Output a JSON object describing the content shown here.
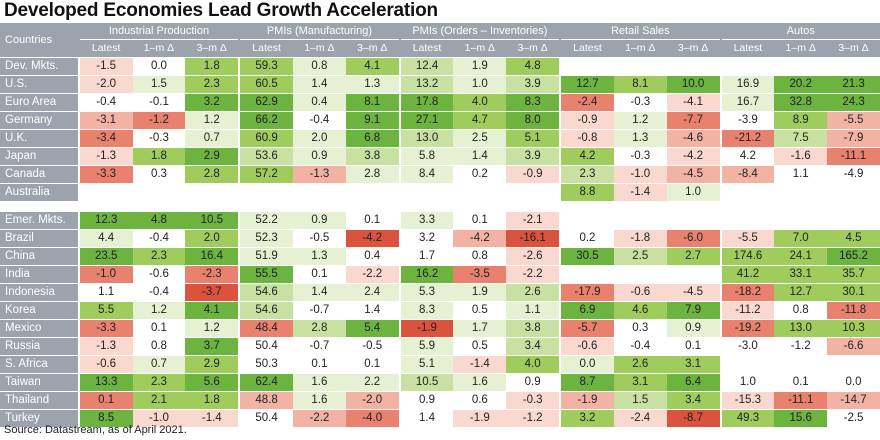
{
  "title": "Developed Economies Lead Growth Acceleration",
  "source": "Source: Datastream, as of April 2021.",
  "chart_data": {
    "type": "table",
    "countries_header": "Countries",
    "groups": [
      {
        "name": "Industrial Production",
        "columns": [
          "Latest",
          "1–m Δ",
          "3–m Δ"
        ]
      },
      {
        "name": "PMIs (Manufacturing)",
        "columns": [
          "Latest",
          "1–m Δ",
          "3–m Δ"
        ]
      },
      {
        "name": "PMIs (Orders – Inventories)",
        "columns": [
          "Latest",
          "1–m Δ",
          "3–m Δ"
        ]
      },
      {
        "name": "Retail Sales",
        "columns": [
          "Latest",
          "1–m Δ",
          "3–m Δ"
        ]
      },
      {
        "name": "Autos",
        "columns": [
          "Latest",
          "1–m Δ",
          "3–m Δ"
        ]
      }
    ],
    "sections": [
      {
        "rows": [
          {
            "country": "Dev. Mkts.",
            "values": [
              "-1.5",
              "0.0",
              "1.8",
              "59.3",
              "0.8",
              "4.1",
              "12.4",
              "1.9",
              "4.8",
              "",
              "",
              "",
              "",
              "",
              ""
            ],
            "shades": [
              "r1",
              "g0",
              "g3",
              "g3",
              "g1",
              "g3",
              "g2",
              "g1",
              "g3",
              "n",
              "n",
              "n",
              "n",
              "n",
              "n"
            ]
          },
          {
            "country": "U.S.",
            "values": [
              "-2.0",
              "1.5",
              "2.3",
              "60.5",
              "1.4",
              "1.3",
              "13.2",
              "1.0",
              "3.9",
              "12.7",
              "8.1",
              "10.0",
              "16.9",
              "20.2",
              "21.3"
            ],
            "shades": [
              "r1",
              "g1",
              "g3",
              "g3",
              "g1",
              "g1",
              "g2",
              "g1",
              "g2",
              "g4",
              "g3",
              "g4",
              "g1",
              "g4",
              "g4"
            ]
          },
          {
            "country": "Euro Area",
            "values": [
              "-0.4",
              "-0.1",
              "3.2",
              "62.9",
              "0.4",
              "8.1",
              "17.8",
              "4.0",
              "8.3",
              "-2.4",
              "-0.3",
              "-4.1",
              "16.7",
              "32.8",
              "24.3"
            ],
            "shades": [
              "g0",
              "g0",
              "g4",
              "g4",
              "g1",
              "g4",
              "g4",
              "g3",
              "g4",
              "r3",
              "g0",
              "r1",
              "g1",
              "g4",
              "g4"
            ]
          },
          {
            "country": "Germany",
            "values": [
              "-3.1",
              "-1.2",
              "1.2",
              "66.2",
              "-0.4",
              "9.1",
              "27.1",
              "4.7",
              "8.0",
              "-0.9",
              "1.2",
              "-7.7",
              "-3.9",
              "8.9",
              "-5.5"
            ],
            "shades": [
              "r2",
              "r3",
              "g1",
              "g4",
              "g0",
              "g4",
              "g4",
              "g3",
              "g4",
              "r1",
              "g1",
              "r3",
              "g0",
              "g3",
              "r2"
            ]
          },
          {
            "country": "U.K.",
            "values": [
              "-3.4",
              "-0.3",
              "0.7",
              "60.9",
              "2.0",
              "6.8",
              "13.0",
              "2.5",
              "5.1",
              "-0.8",
              "1.3",
              "-4.6",
              "-21.2",
              "7.5",
              "-7.9"
            ],
            "shades": [
              "r3",
              "g0",
              "g1",
              "g3",
              "g1",
              "g4",
              "g2",
              "g1",
              "g3",
              "r1",
              "g1",
              "r2",
              "r3",
              "g2",
              "r2"
            ]
          },
          {
            "country": "Japan",
            "values": [
              "-1.3",
              "1.8",
              "2.9",
              "53.6",
              "0.9",
              "3.8",
              "5.8",
              "1.4",
              "3.9",
              "4.2",
              "-0.3",
              "-4.2",
              "4.2",
              "-1.6",
              "-11.1"
            ],
            "shades": [
              "r1",
              "g3",
              "g4",
              "g2",
              "g1",
              "g2",
              "g1",
              "g1",
              "g2",
              "g3",
              "g0",
              "r1",
              "g0",
              "r1",
              "r3"
            ]
          },
          {
            "country": "Canada",
            "values": [
              "-3.3",
              "0.3",
              "2.8",
              "57.2",
              "-1.3",
              "2.8",
              "8.4",
              "0.2",
              "-0.9",
              "2.3",
              "-1.0",
              "-4.5",
              "-8.4",
              "1.1",
              "-4.9"
            ],
            "shades": [
              "r3",
              "g0",
              "g3",
              "g3",
              "r2",
              "g1",
              "g1",
              "g0",
              "r1",
              "g2",
              "r1",
              "r2",
              "r2",
              "g0",
              "g0"
            ]
          },
          {
            "country": "Australia",
            "values": [
              "",
              "",
              "",
              "",
              "",
              "",
              "",
              "",
              "",
              "8.8",
              "-1.4",
              "1.0",
              "",
              "",
              ""
            ],
            "shades": [
              "n",
              "n",
              "n",
              "n",
              "n",
              "n",
              "n",
              "n",
              "n",
              "g3",
              "r1",
              "g1",
              "n",
              "n",
              "n"
            ]
          }
        ]
      },
      {
        "rows": [
          {
            "country": "Emer. Mkts.",
            "values": [
              "12.3",
              "4.8",
              "10.5",
              "52.2",
              "0.9",
              "0.1",
              "3.3",
              "0.1",
              "-2.1",
              "",
              "",
              "",
              "",
              "",
              ""
            ],
            "shades": [
              "g4",
              "g4",
              "g4",
              "g1",
              "g1",
              "g0",
              "g1",
              "g0",
              "r1",
              "n",
              "n",
              "n",
              "n",
              "n",
              "n"
            ]
          },
          {
            "country": "Brazil",
            "values": [
              "4.4",
              "-0.4",
              "2.0",
              "52.3",
              "-0.5",
              "-4.2",
              "3.2",
              "-4.2",
              "-16.1",
              "0.2",
              "-1.8",
              "-6.0",
              "-5.5",
              "7.0",
              "4.5"
            ],
            "shades": [
              "g1",
              "g0",
              "g3",
              "g1",
              "g0",
              "r4",
              "g0",
              "r2",
              "r4",
              "g0",
              "r1",
              "r3",
              "r1",
              "g3",
              "g3"
            ]
          },
          {
            "country": "China",
            "values": [
              "23.5",
              "2.3",
              "16.4",
              "51.9",
              "1.3",
              "0.4",
              "1.7",
              "0.8",
              "-2.6",
              "30.5",
              "2.5",
              "2.7",
              "174.6",
              "24.1",
              "165.2"
            ],
            "shades": [
              "g4",
              "g3",
              "g4",
              "g1",
              "g1",
              "g0",
              "g0",
              "g0",
              "r1",
              "g4",
              "g2",
              "g3",
              "g3",
              "g3",
              "g4"
            ]
          },
          {
            "country": "India",
            "values": [
              "-1.0",
              "-0.6",
              "-2.3",
              "55.5",
              "0.1",
              "-2.2",
              "16.2",
              "-3.5",
              "-2.2",
              "",
              "",
              "",
              "41.2",
              "33.1",
              "35.7"
            ],
            "shades": [
              "r3",
              "g0",
              "r3",
              "g4",
              "g0",
              "r1",
              "g4",
              "r3",
              "r1",
              "n",
              "n",
              "n",
              "g3",
              "g3",
              "g3"
            ]
          },
          {
            "country": "Indonesia",
            "values": [
              "1.1",
              "-0.4",
              "-3.7",
              "54.6",
              "1.4",
              "2.4",
              "5.3",
              "1.9",
              "2.6",
              "-17.9",
              "-0.6",
              "-4.5",
              "-18.2",
              "12.7",
              "30.1"
            ],
            "shades": [
              "g0",
              "g0",
              "r4",
              "g2",
              "g1",
              "g1",
              "g1",
              "g1",
              "g2",
              "r3",
              "r1",
              "r1",
              "r3",
              "g3",
              "g3"
            ]
          },
          {
            "country": "Korea",
            "values": [
              "5.5",
              "1.2",
              "4.1",
              "54.6",
              "-0.7",
              "1.4",
              "8.3",
              "0.5",
              "1.1",
              "6.9",
              "4.6",
              "7.9",
              "-11.2",
              "0.8",
              "-11.8"
            ],
            "shades": [
              "g3",
              "g1",
              "g4",
              "g2",
              "g0",
              "g0",
              "g1",
              "g0",
              "g1",
              "g4",
              "g3",
              "g4",
              "r1",
              "g0",
              "r3"
            ]
          },
          {
            "country": "Mexico",
            "values": [
              "-3.3",
              "0.1",
              "1.2",
              "48.4",
              "2.8",
              "5.4",
              "-1.9",
              "1.7",
              "3.8",
              "-5.7",
              "0.3",
              "0.9",
              "-19.2",
              "13.0",
              "10.3"
            ],
            "shades": [
              "r3",
              "g0",
              "g1",
              "r3",
              "g2",
              "g4",
              "r4",
              "g1",
              "g2",
              "r3",
              "g0",
              "g1",
              "r3",
              "g3",
              "g3"
            ]
          },
          {
            "country": "Russia",
            "values": [
              "-1.3",
              "0.8",
              "3.7",
              "50.4",
              "-0.7",
              "-0.5",
              "5.9",
              "0.5",
              "3.4",
              "-0.6",
              "-0.4",
              "0.1",
              "-3.0",
              "-1.2",
              "-6.6"
            ],
            "shades": [
              "r1",
              "g0",
              "g4",
              "g0",
              "g0",
              "g0",
              "g1",
              "g0",
              "g2",
              "r1",
              "g0",
              "g0",
              "g0",
              "g0",
              "r2"
            ]
          },
          {
            "country": "S. Africa",
            "values": [
              "-0.6",
              "0.7",
              "2.9",
              "50.3",
              "0.1",
              "0.1",
              "5.1",
              "-1.4",
              "4.0",
              "0.0",
              "2.6",
              "3.1",
              "",
              "",
              ""
            ],
            "shades": [
              "r1",
              "g1",
              "g3",
              "g0",
              "g0",
              "g0",
              "g1",
              "r1",
              "g3",
              "g1",
              "g3",
              "g3",
              "n",
              "n",
              "n"
            ]
          },
          {
            "country": "Taiwan",
            "values": [
              "13.3",
              "2.3",
              "5.6",
              "62.4",
              "1.6",
              "2.2",
              "10.5",
              "1.6",
              "0.9",
              "8.7",
              "3.1",
              "6.4",
              "1.0",
              "0.1",
              "0.0"
            ],
            "shades": [
              "g4",
              "g3",
              "g4",
              "g4",
              "g1",
              "g1",
              "g2",
              "g1",
              "g0",
              "g4",
              "g3",
              "g4",
              "g0",
              "g0",
              "g0"
            ]
          },
          {
            "country": "Thailand",
            "values": [
              "0.1",
              "2.1",
              "1.8",
              "48.8",
              "1.6",
              "-2.0",
              "0.9",
              "0.6",
              "-0.3",
              "-1.9",
              "1.5",
              "3.4",
              "-15.3",
              "-11.1",
              "-14.7"
            ],
            "shades": [
              "r3",
              "g3",
              "g3",
              "r2",
              "g1",
              "r2",
              "g0",
              "g0",
              "r1",
              "r2",
              "g2",
              "g3",
              "r1",
              "r3",
              "r2"
            ]
          },
          {
            "country": "Turkey",
            "values": [
              "8.5",
              "-1.0",
              "-1.4",
              "50.4",
              "-2.2",
              "-4.0",
              "1.4",
              "-1.9",
              "-1.2",
              "3.2",
              "-2.4",
              "-8.7",
              "49.3",
              "15.6",
              "-2.5"
            ],
            "shades": [
              "g4",
              "r1",
              "r1",
              "g0",
              "r2",
              "r3",
              "g0",
              "r1",
              "r1",
              "g3",
              "r1",
              "r4",
              "g3",
              "g4",
              "g0"
            ]
          }
        ]
      }
    ],
    "palette": {
      "r4": "#d9533f",
      "r3": "#e8826e",
      "r2": "#f2b3a4",
      "r1": "#f9d9cf",
      "g0": "#ffffff",
      "g1": "#e6f1d3",
      "g2": "#c8e1a2",
      "g3": "#9fcc5c",
      "g4": "#6cb33f",
      "n": "#ffffff",
      "header": "#9da3ad"
    }
  }
}
